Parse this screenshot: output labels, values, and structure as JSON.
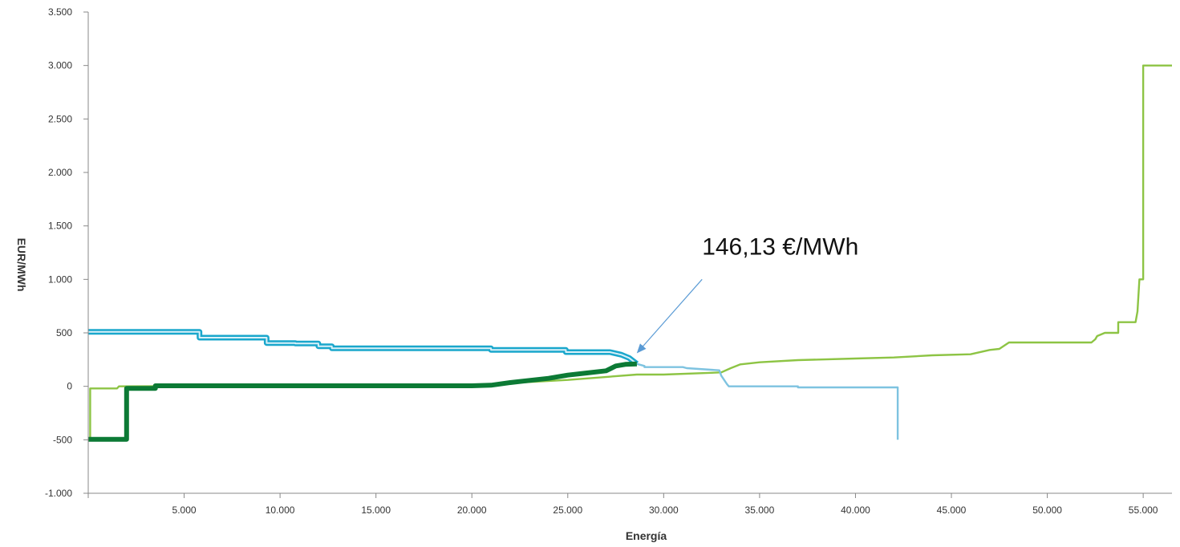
{
  "chart_data": {
    "type": "line",
    "title": "",
    "xlabel": "Energía",
    "ylabel": "EUR/MWh",
    "xlim": [
      0,
      56500
    ],
    "ylim": [
      -1000,
      3500
    ],
    "xticks": [
      5000,
      10000,
      15000,
      20000,
      25000,
      30000,
      35000,
      40000,
      45000,
      50000,
      55000
    ],
    "xtick_labels": [
      "5.000",
      "10.000",
      "15.000",
      "20.000",
      "25.000",
      "30.000",
      "35.000",
      "40.000",
      "45.000",
      "50.000",
      "55.000"
    ],
    "yticks": [
      -1000,
      -500,
      0,
      500,
      1000,
      1500,
      2000,
      2500,
      3000,
      3500
    ],
    "ytick_labels": [
      "-1.000",
      "-500",
      "0",
      "500",
      "1.000",
      "1.500",
      "2.000",
      "2.500",
      "3.000",
      "3.500"
    ],
    "grid": false,
    "legend": "none",
    "series": [
      {
        "color": "#1aa7cc",
        "style": "double",
        "x": [
          0,
          5800,
          5800,
          9300,
          9300,
          10800,
          10800,
          12000,
          12000,
          12700,
          12700,
          21000,
          21000,
          24900,
          24900,
          27200,
          27800,
          28200,
          28600
        ],
        "y": [
          510,
          510,
          455,
          455,
          405,
          405,
          400,
          400,
          375,
          375,
          355,
          355,
          340,
          340,
          320,
          320,
          295,
          265,
          210
        ]
      },
      {
        "color": "#7ec3e0",
        "style": "solid",
        "x": [
          28600,
          29000,
          29000,
          31000,
          31200,
          32900,
          33000,
          33300,
          33400,
          37000,
          37000,
          42200,
          42200,
          42200
        ],
        "y": [
          210,
          190,
          180,
          180,
          170,
          150,
          100,
          20,
          0,
          0,
          -10,
          -10,
          -300,
          -500
        ]
      },
      {
        "color": "#0c7a35",
        "style": "thick",
        "x": [
          0,
          2000,
          2000,
          3500,
          3500,
          20000,
          21000,
          22000,
          23000,
          24000,
          25000,
          26000,
          27000,
          27500,
          28000,
          28600
        ],
        "y": [
          -495,
          -495,
          -20,
          -20,
          5,
          5,
          10,
          35,
          55,
          75,
          105,
          125,
          145,
          190,
          205,
          210
        ]
      },
      {
        "color": "#8dc444",
        "style": "solid",
        "x": [
          0,
          100,
          100,
          1500,
          1600,
          20000,
          25000,
          28600,
          30000,
          33000,
          33500,
          34000,
          35000,
          37000,
          40000,
          42000,
          44000,
          46000,
          47000,
          47500,
          48000,
          52300,
          52500,
          52600,
          53000,
          53700,
          53700,
          54600,
          54700,
          54700,
          54800,
          54800,
          55000,
          55000,
          56500
        ],
        "y": [
          -500,
          -500,
          -20,
          -20,
          0,
          10,
          60,
          110,
          110,
          130,
          170,
          205,
          225,
          245,
          260,
          270,
          290,
          300,
          340,
          350,
          410,
          410,
          440,
          470,
          500,
          500,
          600,
          600,
          700,
          700,
          1000,
          1000,
          1000,
          3000,
          3000
        ]
      }
    ],
    "annotations": [
      {
        "text": "146,13 €/MWh",
        "arrow_to": [
          28650,
          320
        ],
        "arrow_from": [
          32000,
          1000
        ],
        "text_pos": [
          32000,
          1230
        ]
      }
    ]
  }
}
